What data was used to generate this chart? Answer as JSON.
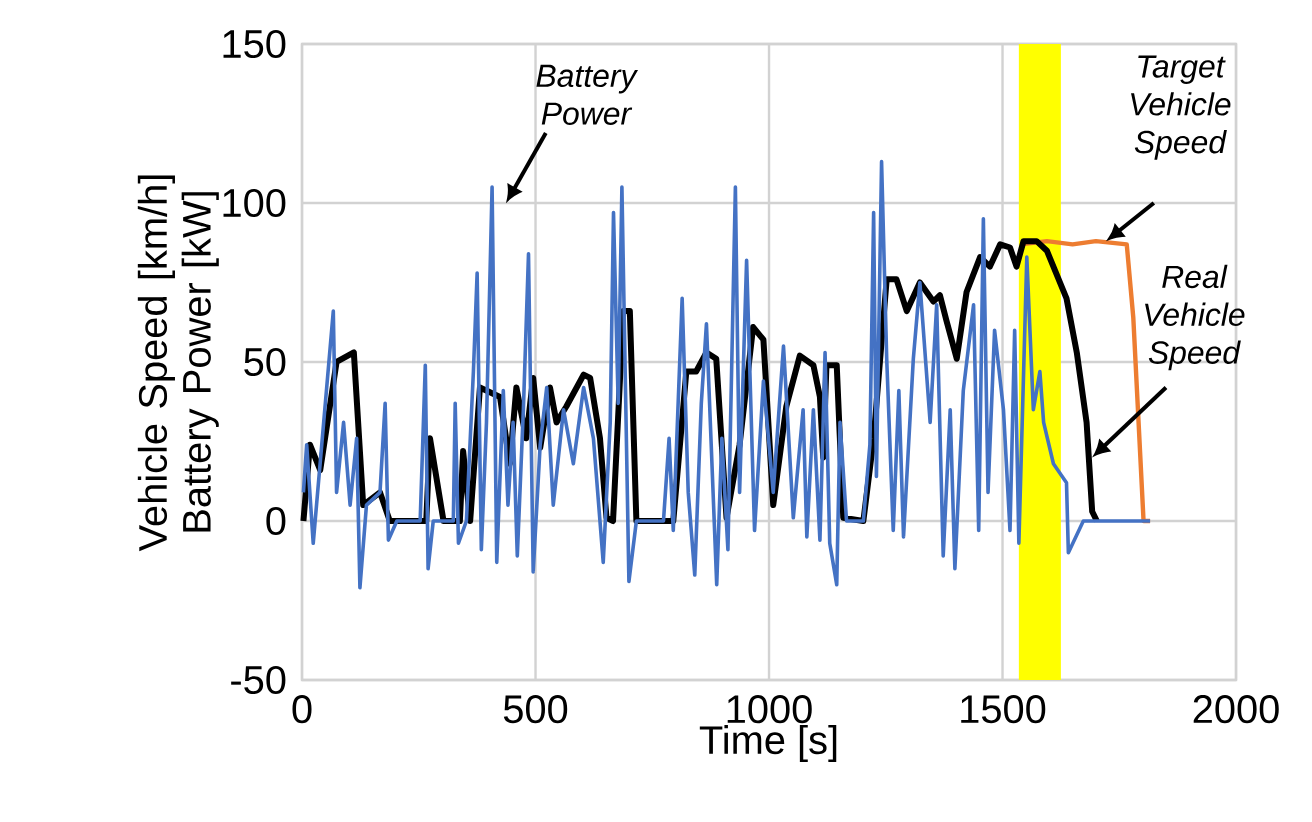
{
  "chart_data": {
    "type": "line",
    "xlabel": "Time [s]",
    "ylabel": "Vehicle Speed [km/h] Battery Power [kW]",
    "xlim": [
      0,
      2000
    ],
    "ylim": [
      -50,
      150
    ],
    "xticks": [
      0,
      500,
      1000,
      1500,
      2000
    ],
    "yticks": [
      -50,
      0,
      50,
      100,
      150
    ],
    "grid": true,
    "bands": [
      {
        "axis": "x",
        "from": 1535,
        "to": 1625,
        "color": "#ffff00"
      }
    ],
    "series": [
      {
        "name": "Target Vehicle Speed",
        "color": "#ed7d31",
        "x": [
          1540,
          1595,
          1650,
          1700,
          1766,
          1780,
          1802,
          1816
        ],
        "values": [
          87,
          88,
          87,
          88,
          87,
          64,
          0,
          0
        ]
      },
      {
        "name": "Real Vehicle Speed",
        "color": "#000000",
        "x": [
          3,
          17,
          39,
          74,
          111,
          131,
          167,
          188,
          266,
          274,
          303,
          338,
          345,
          360,
          381,
          424,
          445,
          459,
          480,
          495,
          510,
          531,
          545,
          566,
          603,
          617,
          638,
          652,
          666,
          688,
          702,
          716,
          795,
          823,
          844,
          866,
          887,
          909,
          937,
          966,
          988,
          1009,
          1037,
          1066,
          1095,
          1109,
          1116,
          1123,
          1145,
          1159,
          1202,
          1224,
          1252,
          1273,
          1295,
          1323,
          1352,
          1366,
          1380,
          1402,
          1423,
          1452,
          1473,
          1495,
          1516,
          1530,
          1545,
          1573,
          1595,
          1637,
          1659,
          1680,
          1692,
          1702
        ],
        "values": [
          0,
          24,
          16,
          50,
          53,
          5,
          9,
          0,
          0,
          26,
          0,
          0,
          22,
          0,
          42,
          39,
          18,
          42,
          26,
          45,
          23,
          42,
          31,
          36,
          46,
          45,
          26,
          1,
          0,
          66,
          66,
          0,
          0,
          47,
          47,
          53,
          51,
          1,
          24,
          61,
          57,
          5,
          36,
          52,
          49,
          39,
          20,
          49,
          49,
          1,
          0,
          26,
          76,
          76,
          66,
          75,
          69,
          71,
          63,
          51,
          72,
          83,
          80,
          87,
          86,
          80,
          88,
          88,
          85,
          70,
          53,
          31,
          3,
          0
        ]
      },
      {
        "name": "Battery Power",
        "color": "#4472c4",
        "x": [
          3,
          10,
          24,
          67,
          74,
          89,
          103,
          117,
          124,
          138,
          167,
          178,
          185,
          203,
          253,
          264,
          270,
          281,
          324,
          328,
          335,
          352,
          367,
          375,
          384,
          395,
          407,
          417,
          431,
          441,
          452,
          461,
          474,
          485,
          495,
          510,
          524,
          538,
          560,
          581,
          603,
          624,
          645,
          660,
          667,
          677,
          685,
          700,
          716,
          774,
          786,
          795,
          814,
          827,
          841,
          855,
          866,
          888,
          899,
          912,
          928,
          937,
          952,
          969,
          988,
          1009,
          1031,
          1052,
          1073,
          1081,
          1095,
          1109,
          1120,
          1130,
          1145,
          1152,
          1166,
          1202,
          1216,
          1224,
          1230,
          1241,
          1252,
          1266,
          1278,
          1288,
          1309,
          1323,
          1345,
          1359,
          1373,
          1388,
          1398,
          1416,
          1438,
          1449,
          1459,
          1469,
          1483,
          1502,
          1516,
          1526,
          1535,
          1552,
          1566,
          1580,
          1588,
          1609,
          1637,
          1641,
          1673,
          1695,
          1816
        ],
        "values": [
          9,
          24,
          -7,
          66,
          9,
          31,
          5,
          26,
          -21,
          5,
          9,
          37,
          -6,
          0,
          0,
          49,
          -15,
          0,
          0,
          37,
          -7,
          0,
          47,
          78,
          -9,
          31,
          105,
          -13,
          41,
          5,
          31,
          -11,
          35,
          84,
          -16,
          24,
          42,
          5,
          35,
          18,
          42,
          26,
          -13,
          31,
          97,
          37,
          105,
          -19,
          0,
          0,
          26,
          -3,
          70,
          9,
          -17,
          37,
          62,
          -20,
          26,
          -9,
          105,
          9,
          82,
          -3,
          44,
          9,
          55,
          1,
          35,
          -5,
          35,
          -6,
          53,
          -7,
          -20,
          31,
          0,
          0,
          24,
          97,
          14,
          113,
          51,
          -3,
          41,
          -5,
          51,
          75,
          31,
          68,
          -11,
          35,
          -15,
          41,
          68,
          -3,
          95,
          9,
          60,
          35,
          -3,
          60,
          -7,
          83,
          35,
          47,
          31,
          18,
          12,
          -10,
          0,
          0,
          0
        ]
      }
    ]
  }
}
